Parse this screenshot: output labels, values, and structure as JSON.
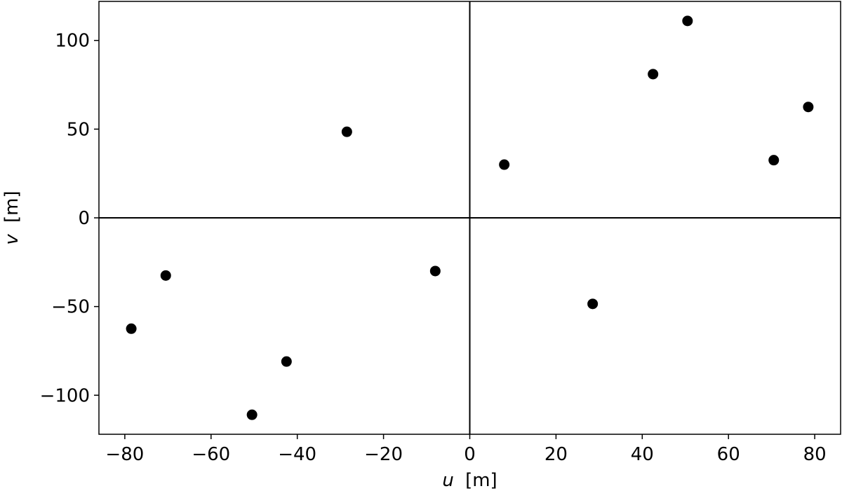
{
  "chart_data": {
    "type": "scatter",
    "title": "",
    "xlabel": {
      "var": "u",
      "unit": "[m]"
    },
    "ylabel": {
      "var": "v",
      "unit": "[m]"
    },
    "xlim": [
      -86,
      86
    ],
    "ylim": [
      -122,
      122
    ],
    "grid": false,
    "xticks": [
      -80,
      -60,
      -40,
      -20,
      0,
      20,
      40,
      60,
      80
    ],
    "yticks": [
      -100,
      -50,
      0,
      50,
      100
    ],
    "xtick_labels": [
      "−80",
      "−60",
      "−40",
      "−20",
      "0",
      "20",
      "40",
      "60",
      "80"
    ],
    "ytick_labels": [
      "−100",
      "−50",
      "0",
      "50",
      "100"
    ],
    "reference_lines": {
      "x": 0,
      "y": 0
    },
    "marker_color": "#000000",
    "points": [
      {
        "x": -78.5,
        "y": -62.5
      },
      {
        "x": -70.5,
        "y": -32.5
      },
      {
        "x": -50.5,
        "y": -111
      },
      {
        "x": -42.5,
        "y": -81
      },
      {
        "x": -28.5,
        "y": 48.5
      },
      {
        "x": -8,
        "y": -30
      },
      {
        "x": 8,
        "y": 30
      },
      {
        "x": 28.5,
        "y": -48.5
      },
      {
        "x": 42.5,
        "y": 81
      },
      {
        "x": 50.5,
        "y": 111
      },
      {
        "x": 70.5,
        "y": 32.5
      },
      {
        "x": 78.5,
        "y": 62.5
      }
    ]
  }
}
